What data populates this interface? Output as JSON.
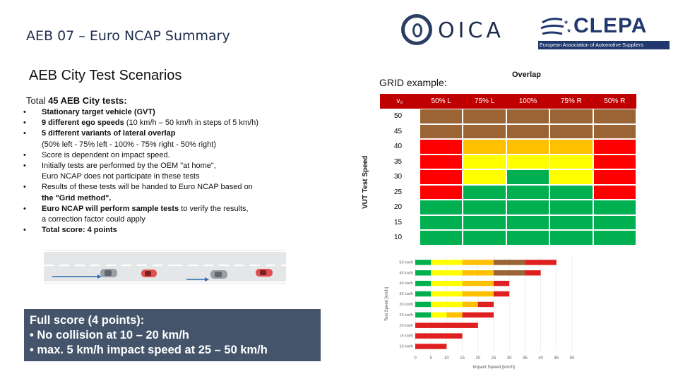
{
  "slide": {
    "title": "AEB 07 – Euro NCAP Summary"
  },
  "logos": {
    "oica": {
      "text": "OICA"
    },
    "clepa": {
      "text": "CLEPA",
      "subtitle": "European Association of Automotive Suppliers"
    }
  },
  "section": {
    "heading": "AEB City Test Scenarios"
  },
  "total": {
    "prefix": "Total ",
    "count": "45 AEB City tests:"
  },
  "bullets": [
    {
      "bold": "Stationary target vehicle (GVT)",
      "rest": ""
    },
    {
      "bold": "9 different ego speeds",
      "rest": " (10 km/h – 50 km/h in steps of 5 km/h)"
    },
    {
      "bold": "5 different variants of lateral overlap",
      "rest": "",
      "sub": "(50% left - 75% left - 100% - 75% right - 50% right)"
    },
    {
      "bold": "",
      "rest": "Score is dependent on impact speed."
    },
    {
      "bold": "",
      "rest": "Initially tests are performed by the OEM \"at home\",",
      "sub": "Euro NCAP does not participate in these tests"
    },
    {
      "bold": "",
      "rest": "Results of these tests will be handed to Euro NCAP based on",
      "sub_bold": "the \"Grid method\"."
    },
    {
      "bold": "Euro NCAP will perform sample tests",
      "rest": " to verify the results,",
      "sub": " a correction factor could apply"
    },
    {
      "bold": "Total score: 4 points",
      "rest": ""
    }
  ],
  "score_box": {
    "line1": "Full score (4 points):",
    "line2": "•  No collision at 10 – 20 km/h",
    "line3": "•  max. 5 km/h impact speed at 25 – 50 km/h"
  },
  "grid_example": {
    "label": "GRID example:",
    "overlap_label": "Overlap",
    "y_label": "VUT Test Speed",
    "speed_header": "v₀",
    "columns": [
      "50% L",
      "75% L",
      "100%",
      "75% R",
      "50% R"
    ],
    "speeds": [
      "50",
      "45",
      "40",
      "35",
      "30",
      "25",
      "20",
      "15",
      "10"
    ],
    "rows": [
      [
        "brown",
        "brown",
        "brown",
        "brown",
        "brown"
      ],
      [
        "brown",
        "brown",
        "brown",
        "brown",
        "brown"
      ],
      [
        "red",
        "orange",
        "orange",
        "orange",
        "red"
      ],
      [
        "red",
        "yellow",
        "yellow",
        "yellow",
        "red"
      ],
      [
        "red",
        "yellow",
        "green",
        "yellow",
        "red"
      ],
      [
        "red",
        "green",
        "green",
        "green",
        "red"
      ],
      [
        "green",
        "green",
        "green",
        "green",
        "green"
      ],
      [
        "green",
        "green",
        "green",
        "green",
        "green"
      ],
      [
        "green",
        "green",
        "green",
        "green",
        "green"
      ]
    ],
    "colors": {
      "header": "#c00000",
      "brown": "#9a6434",
      "red": "#ff0000",
      "orange": "#ffc000",
      "yellow": "#ffff00",
      "green": "#00b050"
    }
  },
  "chart_data": {
    "type": "bar",
    "stacked": true,
    "orientation": "horizontal",
    "xlabel": "Impact Speed [km/h]",
    "ylabel": "Test Speed [km/h]",
    "xlim": [
      0,
      50
    ],
    "xticks": [
      "0",
      "5",
      "10",
      "15",
      "20",
      "25",
      "30",
      "35",
      "40",
      "45",
      "50"
    ],
    "categories": [
      "50 km/h",
      "45 km/h",
      "40 km/h",
      "35 km/h",
      "30 km/h",
      "25 km/h",
      "20 km/h",
      "15 km/h",
      "10 km/h"
    ],
    "series": [
      {
        "color": "#00b050",
        "values": [
          5,
          5,
          5,
          5,
          5,
          5,
          0,
          0,
          0
        ]
      },
      {
        "color": "#ffff00",
        "values": [
          10,
          10,
          10,
          10,
          10,
          5,
          0,
          0,
          0
        ]
      },
      {
        "color": "#ffc000",
        "values": [
          10,
          10,
          10,
          10,
          5,
          5,
          0,
          0,
          0
        ]
      },
      {
        "color": "#9a6434",
        "values": [
          10,
          10,
          0,
          0,
          0,
          0,
          0,
          0,
          0
        ]
      },
      {
        "color": "#e02020",
        "values": [
          10,
          5,
          5,
          5,
          5,
          10,
          20,
          15,
          10
        ]
      }
    ]
  }
}
